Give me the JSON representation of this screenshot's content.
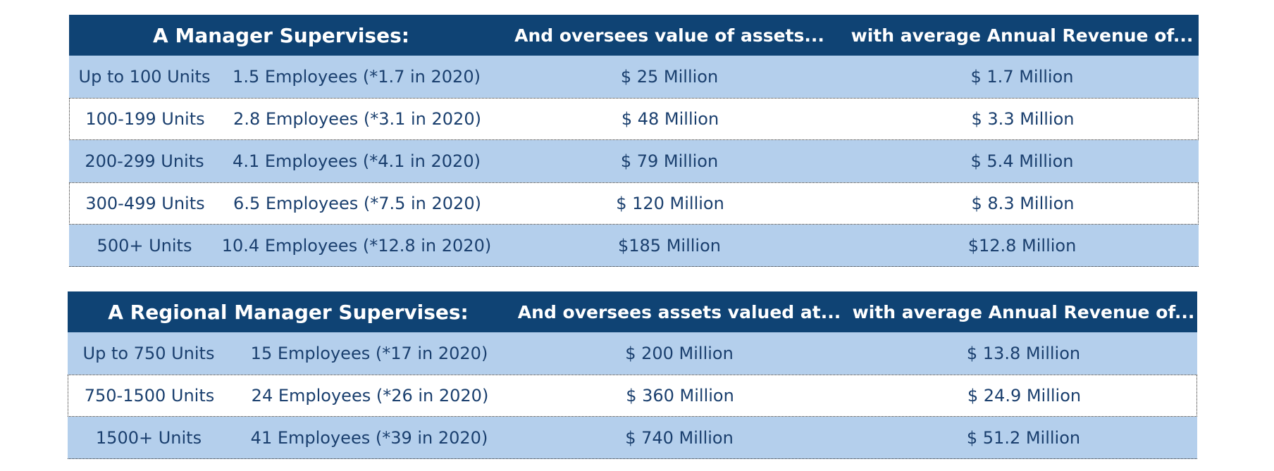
{
  "manager_table": {
    "header": {
      "title": "A Manager Supervises:",
      "assets": "And oversees value of assets...",
      "revenue": "with average Annual Revenue of..."
    },
    "rows": [
      {
        "units": "Up to 100 Units",
        "employees": "1.5 Employees (*1.7 in 2020)",
        "assets": "$  25 Million",
        "revenue": "$ 1.7 Million"
      },
      {
        "units": "100-199 Units",
        "employees": "2.8 Employees (*3.1 in 2020)",
        "assets": "$  48 Million",
        "revenue": "$ 3.3 Million"
      },
      {
        "units": "200-299 Units",
        "employees": "4.1 Employees (*4.1 in 2020)",
        "assets": "$  79 Million",
        "revenue": "$ 5.4 Million"
      },
      {
        "units": "300-499 Units",
        "employees": "6.5 Employees (*7.5 in 2020)",
        "assets": "$ 120 Million",
        "revenue": "$ 8.3 Million"
      },
      {
        "units": "500+ Units",
        "employees": "10.4 Employees (*12.8 in 2020)",
        "assets": "$185 Million",
        "revenue": "$12.8 Million"
      }
    ]
  },
  "regional_table": {
    "header": {
      "title": "A Regional Manager Supervises:",
      "assets": "And oversees assets valued at...",
      "revenue": "with average Annual Revenue of..."
    },
    "rows": [
      {
        "units": "Up to 750 Units",
        "employees": "15 Employees (*17 in 2020)",
        "assets": "$ 200 Million",
        "revenue": "$ 13.8 Million"
      },
      {
        "units": "750-1500 Units",
        "employees": "24 Employees (*26 in 2020)",
        "assets": "$ 360 Million",
        "revenue": "$ 24.9 Million"
      },
      {
        "units": "1500+ Units",
        "employees": "41 Employees (*39 in 2020)",
        "assets": "$ 740 Million",
        "revenue": "$ 51.2 Million"
      }
    ]
  },
  "colors": {
    "header_bg": "#0f4374",
    "header_text": "#ffffff",
    "band_blue": "#b4cfec",
    "band_white": "#ffffff",
    "body_text": "#1a3f6e"
  }
}
